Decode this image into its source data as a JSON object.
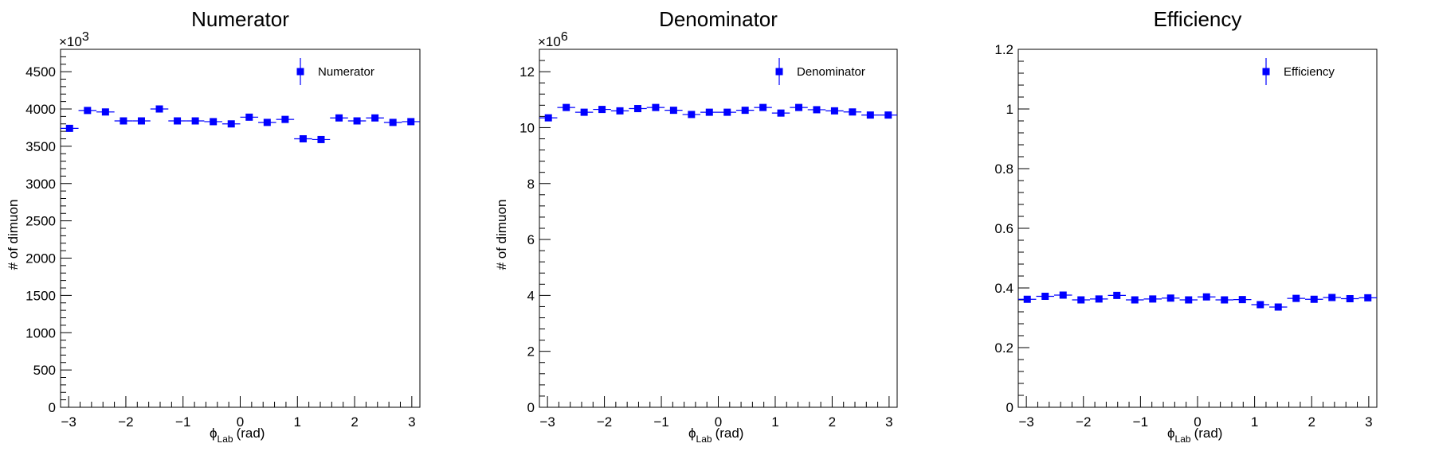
{
  "chart_data": [
    {
      "type": "scatter",
      "title": "Numerator",
      "xlabel": "ϕ",
      "xlabel_sub": "Lab",
      "xlabel_unit": "(rad)",
      "ylabel": "# of dimuon",
      "y_multiplier": "×10",
      "y_exponent": "3",
      "xlim": [
        -3.14159,
        3.14159
      ],
      "ylim": [
        0,
        4800
      ],
      "xticks": [
        -3,
        -2,
        -1,
        0,
        1,
        2,
        3
      ],
      "xtick_labels": [
        "−3",
        "−2",
        "−1",
        "0",
        "1",
        "2",
        "3"
      ],
      "yticks": [
        0,
        500,
        1000,
        1500,
        2000,
        2500,
        3000,
        3500,
        4000,
        4500
      ],
      "ytick_labels": [
        "0",
        "500",
        "1000",
        "1500",
        "2000",
        "2500",
        "3000",
        "3500",
        "4000",
        "4500"
      ],
      "legend": "top-right",
      "series": [
        {
          "name": "Numerator",
          "color": "#0000ff",
          "y": [
            3740,
            3980,
            3960,
            3840,
            3840,
            4000,
            3840,
            3840,
            3830,
            3800,
            3890,
            3820,
            3860,
            3600,
            3590,
            3880,
            3840,
            3880,
            3820,
            3830
          ]
        }
      ]
    },
    {
      "type": "scatter",
      "title": "Denominator",
      "xlabel": "ϕ",
      "xlabel_sub": "Lab",
      "xlabel_unit": "(rad)",
      "ylabel": "# of dimuon",
      "y_multiplier": "×10",
      "y_exponent": "6",
      "xlim": [
        -3.14159,
        3.14159
      ],
      "ylim": [
        0,
        12.8
      ],
      "xticks": [
        -3,
        -2,
        -1,
        0,
        1,
        2,
        3
      ],
      "xtick_labels": [
        "−3",
        "−2",
        "−1",
        "0",
        "1",
        "2",
        "3"
      ],
      "yticks": [
        0,
        2,
        4,
        6,
        8,
        10,
        12
      ],
      "ytick_labels": [
        "0",
        "2",
        "4",
        "6",
        "8",
        "10",
        "12"
      ],
      "legend": "top-right",
      "series": [
        {
          "name": "Denominator",
          "color": "#0000ff",
          "y": [
            10.35,
            10.72,
            10.55,
            10.65,
            10.6,
            10.68,
            10.72,
            10.62,
            10.47,
            10.55,
            10.55,
            10.62,
            10.72,
            10.52,
            10.72,
            10.64,
            10.6,
            10.56,
            10.45,
            10.45
          ]
        }
      ]
    },
    {
      "type": "scatter",
      "title": "Efficiency",
      "xlabel": "ϕ",
      "xlabel_sub": "Lab",
      "xlabel_unit": "(rad)",
      "ylabel": "",
      "xlim": [
        -3.14159,
        3.14159
      ],
      "ylim": [
        0,
        1.2
      ],
      "xticks": [
        -3,
        -2,
        -1,
        0,
        1,
        2,
        3
      ],
      "xtick_labels": [
        "−3",
        "−2",
        "−1",
        "0",
        "1",
        "2",
        "3"
      ],
      "yticks": [
        0,
        0.2,
        0.4,
        0.6,
        0.8,
        1.0,
        1.2
      ],
      "ytick_labels": [
        "0",
        "0.2",
        "0.4",
        "0.6",
        "0.8",
        "1",
        "1.2"
      ],
      "legend": "top-right",
      "series": [
        {
          "name": "Efficiency",
          "color": "#0000ff",
          "y": [
            0.362,
            0.372,
            0.376,
            0.36,
            0.363,
            0.375,
            0.36,
            0.363,
            0.366,
            0.36,
            0.37,
            0.36,
            0.361,
            0.344,
            0.336,
            0.365,
            0.362,
            0.368,
            0.364,
            0.367
          ]
        }
      ]
    }
  ]
}
